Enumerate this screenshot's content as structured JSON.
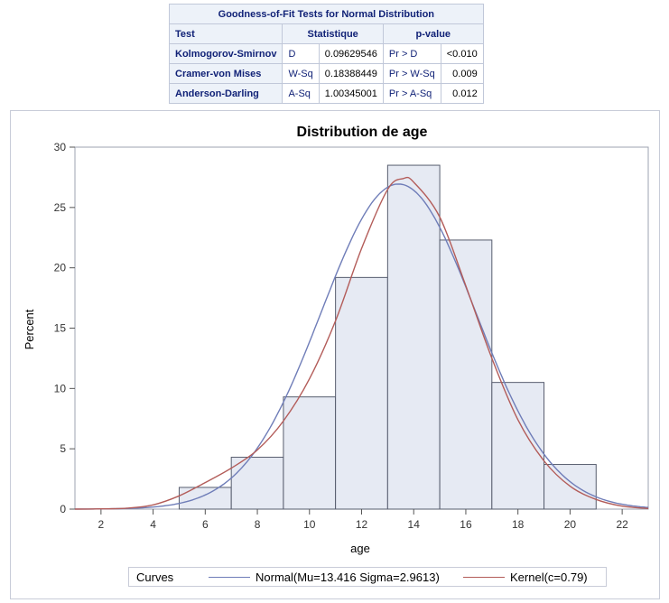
{
  "table": {
    "caption": "Goodness-of-Fit Tests for Normal Distribution",
    "headers": {
      "test": "Test",
      "statistic": "Statistique",
      "pvalue": "p-value"
    },
    "rows": [
      {
        "test": "Kolmogorov-Smirnov",
        "stat_label": "D",
        "stat_value": "0.09629546",
        "p_label": "Pr > D",
        "p_value": "<0.010"
      },
      {
        "test": "Cramer-von Mises",
        "stat_label": "W-Sq",
        "stat_value": "0.18388449",
        "p_label": "Pr > W-Sq",
        "p_value": "0.009"
      },
      {
        "test": "Anderson-Darling",
        "stat_label": "A-Sq",
        "stat_value": "1.00345001",
        "p_label": "Pr > A-Sq",
        "p_value": "0.012"
      }
    ]
  },
  "chart_data": {
    "type": "bar",
    "title": "Distribution de age",
    "xlabel": "age",
    "ylabel": "Percent",
    "xlim": [
      1,
      23
    ],
    "ylim": [
      0,
      30
    ],
    "xticks": [
      2,
      4,
      6,
      8,
      10,
      12,
      14,
      16,
      18,
      20,
      22
    ],
    "yticks": [
      0,
      5,
      10,
      15,
      20,
      25,
      30
    ],
    "bins": [
      {
        "from": 5,
        "to": 7,
        "percent": 1.8
      },
      {
        "from": 7,
        "to": 9,
        "percent": 4.3
      },
      {
        "from": 9,
        "to": 11,
        "percent": 9.3
      },
      {
        "from": 11,
        "to": 13,
        "percent": 19.2
      },
      {
        "from": 13,
        "to": 15,
        "percent": 28.5
      },
      {
        "from": 15,
        "to": 17,
        "percent": 22.3
      },
      {
        "from": 17,
        "to": 19,
        "percent": 10.5
      },
      {
        "from": 19,
        "to": 21,
        "percent": 3.7
      }
    ],
    "normal": {
      "mu": 13.416,
      "sigma": 2.9613,
      "bin_width": 2
    },
    "kernel_points": [
      [
        1,
        0
      ],
      [
        2,
        0.02
      ],
      [
        3,
        0.08
      ],
      [
        4,
        0.35
      ],
      [
        5,
        1.1
      ],
      [
        6,
        2.2
      ],
      [
        7,
        3.4
      ],
      [
        8,
        4.9
      ],
      [
        9,
        7.3
      ],
      [
        10,
        10.8
      ],
      [
        11,
        15.6
      ],
      [
        12,
        21.6
      ],
      [
        13,
        26.5
      ],
      [
        13.6,
        27.4
      ],
      [
        14,
        27.1
      ],
      [
        15,
        24.2
      ],
      [
        16,
        18.5
      ],
      [
        17,
        12.5
      ],
      [
        18,
        7.4
      ],
      [
        19,
        4.0
      ],
      [
        20,
        1.9
      ],
      [
        21,
        0.8
      ],
      [
        22,
        0.25
      ],
      [
        23,
        0.05
      ]
    ],
    "colors": {
      "bar_fill": "#e6eaf3",
      "bar_stroke": "#575d6e",
      "normal": "#6f7db8",
      "kernel": "#b35c59"
    },
    "legend": {
      "title": "Curves",
      "normal_label": "Normal(Mu=13.416 Sigma=2.9613)",
      "kernel_label": "Kernel(c=0.79)",
      "placement": "bottom"
    }
  }
}
